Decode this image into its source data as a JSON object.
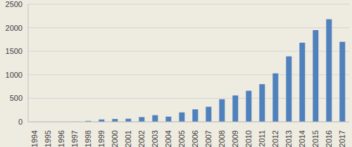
{
  "chart_data": {
    "type": "bar",
    "categories": [
      "1994",
      "1995",
      "1996",
      "1997",
      "1998",
      "1999",
      "2000",
      "2001",
      "2002",
      "2003",
      "2004",
      "2005",
      "2006",
      "2007",
      "2008",
      "2009",
      "2010",
      "2011",
      "2012",
      "2013",
      "2014",
      "2015",
      "2016",
      "2017"
    ],
    "values": [
      0,
      0,
      0,
      2,
      20,
      50,
      60,
      65,
      100,
      140,
      110,
      200,
      265,
      320,
      480,
      560,
      660,
      800,
      1030,
      1390,
      1680,
      1950,
      2180,
      1700
    ],
    "color": "#4f81bd",
    "ylim": [
      0,
      2500
    ],
    "yticks": [
      0,
      500,
      1000,
      1500,
      2000,
      2500
    ],
    "grid": true
  }
}
